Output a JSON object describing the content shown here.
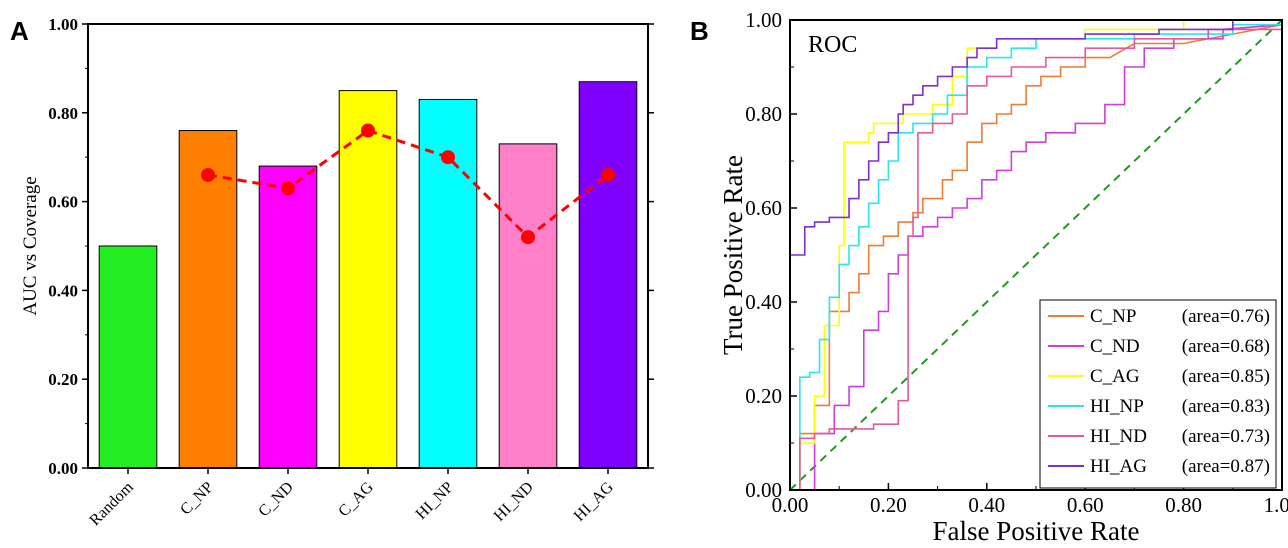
{
  "chart_data": [
    {
      "panel": "A",
      "type": "bar",
      "ylabel": "AUC vs Coverage",
      "ylim": [
        0,
        1
      ],
      "yticks": [
        "0.00",
        "0.20",
        "0.40",
        "0.60",
        "0.80",
        "1.00"
      ],
      "categories": [
        "Random",
        "C_NP",
        "C_ND",
        "C_AG",
        "HI_NP",
        "HI_ND",
        "HI_AG"
      ],
      "values": [
        0.5,
        0.76,
        0.68,
        0.85,
        0.83,
        0.73,
        0.87
      ],
      "bar_colors": [
        "#22ee22",
        "#ff8000",
        "#ff00ff",
        "#ffff00",
        "#00ffff",
        "#ff80c8",
        "#8000ff"
      ],
      "overlay_line": {
        "style": "dashed",
        "color": "#ff0000",
        "categories": [
          "C_NP",
          "C_ND",
          "C_AG",
          "HI_NP",
          "HI_ND",
          "HI_AG"
        ],
        "values": [
          0.66,
          0.63,
          0.76,
          0.7,
          0.52,
          0.66
        ]
      }
    },
    {
      "panel": "B",
      "type": "line",
      "inset_title": "ROC",
      "xlabel": "False Positive Rate",
      "ylabel": "True Positive Rate",
      "xlim": [
        0,
        1
      ],
      "ylim": [
        0,
        1
      ],
      "xticks": [
        "0.00",
        "0.20",
        "0.40",
        "0.60",
        "0.80",
        "1.00"
      ],
      "yticks": [
        "0.00",
        "0.20",
        "0.40",
        "0.60",
        "0.80",
        "1.00"
      ],
      "legend_position": "bottom-right",
      "diagonal": {
        "style": "dashed",
        "color": "#1f9a1f"
      },
      "series": [
        {
          "name": "C_NP",
          "area_label": "(area=0.76)",
          "color": "#ee7d31",
          "points": [
            [
              0,
              0
            ],
            [
              0.02,
              0
            ],
            [
              0.02,
              0.12
            ],
            [
              0.05,
              0.12
            ],
            [
              0.05,
              0.18
            ],
            [
              0.08,
              0.18
            ],
            [
              0.08,
              0.38
            ],
            [
              0.1,
              0.38
            ],
            [
              0.12,
              0.38
            ],
            [
              0.12,
              0.42
            ],
            [
              0.14,
              0.42
            ],
            [
              0.14,
              0.46
            ],
            [
              0.16,
              0.46
            ],
            [
              0.16,
              0.52
            ],
            [
              0.19,
              0.52
            ],
            [
              0.19,
              0.54
            ],
            [
              0.22,
              0.54
            ],
            [
              0.22,
              0.57
            ],
            [
              0.25,
              0.57
            ],
            [
              0.25,
              0.59
            ],
            [
              0.27,
              0.59
            ],
            [
              0.27,
              0.62
            ],
            [
              0.31,
              0.62
            ],
            [
              0.31,
              0.66
            ],
            [
              0.33,
              0.66
            ],
            [
              0.33,
              0.68
            ],
            [
              0.36,
              0.68
            ],
            [
              0.36,
              0.74
            ],
            [
              0.39,
              0.74
            ],
            [
              0.39,
              0.78
            ],
            [
              0.42,
              0.78
            ],
            [
              0.42,
              0.8
            ],
            [
              0.45,
              0.8
            ],
            [
              0.45,
              0.82
            ],
            [
              0.48,
              0.82
            ],
            [
              0.48,
              0.86
            ],
            [
              0.51,
              0.86
            ],
            [
              0.51,
              0.88
            ],
            [
              0.55,
              0.88
            ],
            [
              0.55,
              0.9
            ],
            [
              0.6,
              0.9
            ],
            [
              0.6,
              0.92
            ],
            [
              0.65,
              0.92
            ],
            [
              0.7,
              0.95
            ],
            [
              0.8,
              0.95
            ],
            [
              0.9,
              0.97
            ],
            [
              1,
              0.99
            ]
          ]
        },
        {
          "name": "C_ND",
          "area_label": "(area=0.68)",
          "color": "#d23be0",
          "points": [
            [
              0,
              0
            ],
            [
              0.05,
              0
            ],
            [
              0.05,
              0.12
            ],
            [
              0.09,
              0.12
            ],
            [
              0.09,
              0.18
            ],
            [
              0.12,
              0.18
            ],
            [
              0.12,
              0.22
            ],
            [
              0.15,
              0.22
            ],
            [
              0.15,
              0.34
            ],
            [
              0.18,
              0.34
            ],
            [
              0.18,
              0.38
            ],
            [
              0.2,
              0.38
            ],
            [
              0.2,
              0.46
            ],
            [
              0.22,
              0.46
            ],
            [
              0.22,
              0.5
            ],
            [
              0.24,
              0.5
            ],
            [
              0.24,
              0.54
            ],
            [
              0.27,
              0.54
            ],
            [
              0.27,
              0.56
            ],
            [
              0.3,
              0.56
            ],
            [
              0.3,
              0.58
            ],
            [
              0.33,
              0.58
            ],
            [
              0.33,
              0.6
            ],
            [
              0.36,
              0.6
            ],
            [
              0.36,
              0.62
            ],
            [
              0.39,
              0.62
            ],
            [
              0.39,
              0.66
            ],
            [
              0.42,
              0.66
            ],
            [
              0.42,
              0.68
            ],
            [
              0.45,
              0.68
            ],
            [
              0.45,
              0.72
            ],
            [
              0.48,
              0.72
            ],
            [
              0.48,
              0.74
            ],
            [
              0.52,
              0.74
            ],
            [
              0.52,
              0.76
            ],
            [
              0.58,
              0.76
            ],
            [
              0.58,
              0.78
            ],
            [
              0.64,
              0.78
            ],
            [
              0.64,
              0.82
            ],
            [
              0.68,
              0.82
            ],
            [
              0.68,
              0.9
            ],
            [
              0.72,
              0.9
            ],
            [
              0.72,
              0.94
            ],
            [
              0.78,
              0.94
            ],
            [
              0.78,
              0.96
            ],
            [
              0.88,
              0.96
            ],
            [
              0.88,
              0.98
            ],
            [
              1,
              0.99
            ]
          ]
        },
        {
          "name": "C_AG",
          "area_label": "(area=0.85)",
          "color": "#ffff00",
          "points": [
            [
              0,
              0
            ],
            [
              0.02,
              0
            ],
            [
              0.02,
              0.1
            ],
            [
              0.05,
              0.1
            ],
            [
              0.05,
              0.2
            ],
            [
              0.07,
              0.2
            ],
            [
              0.07,
              0.35
            ],
            [
              0.1,
              0.35
            ],
            [
              0.1,
              0.52
            ],
            [
              0.11,
              0.52
            ],
            [
              0.11,
              0.74
            ],
            [
              0.16,
              0.74
            ],
            [
              0.16,
              0.76
            ],
            [
              0.17,
              0.76
            ],
            [
              0.17,
              0.78
            ],
            [
              0.23,
              0.78
            ],
            [
              0.23,
              0.8
            ],
            [
              0.29,
              0.8
            ],
            [
              0.29,
              0.82
            ],
            [
              0.33,
              0.82
            ],
            [
              0.33,
              0.88
            ],
            [
              0.36,
              0.88
            ],
            [
              0.36,
              0.94
            ],
            [
              0.42,
              0.94
            ],
            [
              0.42,
              0.96
            ],
            [
              0.6,
              0.96
            ],
            [
              0.6,
              0.98
            ],
            [
              0.8,
              0.98
            ],
            [
              0.8,
              1
            ],
            [
              1,
              1
            ]
          ]
        },
        {
          "name": "HI_NP",
          "area_label": "(area=0.83)",
          "color": "#29e6ec",
          "points": [
            [
              0,
              0
            ],
            [
              0.02,
              0
            ],
            [
              0.02,
              0.24
            ],
            [
              0.04,
              0.24
            ],
            [
              0.04,
              0.25
            ],
            [
              0.06,
              0.25
            ],
            [
              0.06,
              0.32
            ],
            [
              0.08,
              0.32
            ],
            [
              0.08,
              0.41
            ],
            [
              0.1,
              0.41
            ],
            [
              0.1,
              0.48
            ],
            [
              0.12,
              0.48
            ],
            [
              0.12,
              0.52
            ],
            [
              0.14,
              0.52
            ],
            [
              0.14,
              0.56
            ],
            [
              0.16,
              0.56
            ],
            [
              0.16,
              0.61
            ],
            [
              0.18,
              0.61
            ],
            [
              0.18,
              0.66
            ],
            [
              0.2,
              0.66
            ],
            [
              0.2,
              0.7
            ],
            [
              0.22,
              0.7
            ],
            [
              0.22,
              0.76
            ],
            [
              0.25,
              0.76
            ],
            [
              0.25,
              0.78
            ],
            [
              0.29,
              0.78
            ],
            [
              0.29,
              0.8
            ],
            [
              0.32,
              0.8
            ],
            [
              0.32,
              0.84
            ],
            [
              0.36,
              0.84
            ],
            [
              0.36,
              0.9
            ],
            [
              0.4,
              0.9
            ],
            [
              0.4,
              0.92
            ],
            [
              0.45,
              0.92
            ],
            [
              0.45,
              0.94
            ],
            [
              0.5,
              0.94
            ],
            [
              0.5,
              0.96
            ],
            [
              0.7,
              0.96
            ],
            [
              0.7,
              0.97
            ],
            [
              0.9,
              0.97
            ],
            [
              0.9,
              0.99
            ],
            [
              1,
              0.99
            ]
          ]
        },
        {
          "name": "HI_ND",
          "area_label": "(area=0.73)",
          "color": "#e6599c",
          "points": [
            [
              0,
              0
            ],
            [
              0.02,
              0
            ],
            [
              0.02,
              0.11
            ],
            [
              0.05,
              0.11
            ],
            [
              0.05,
              0.12
            ],
            [
              0.08,
              0.12
            ],
            [
              0.08,
              0.13
            ],
            [
              0.17,
              0.13
            ],
            [
              0.17,
              0.14
            ],
            [
              0.22,
              0.14
            ],
            [
              0.22,
              0.19
            ],
            [
              0.24,
              0.19
            ],
            [
              0.24,
              0.54
            ],
            [
              0.25,
              0.54
            ],
            [
              0.25,
              0.58
            ],
            [
              0.26,
              0.58
            ],
            [
              0.26,
              0.76
            ],
            [
              0.29,
              0.76
            ],
            [
              0.29,
              0.78
            ],
            [
              0.33,
              0.78
            ],
            [
              0.33,
              0.8
            ],
            [
              0.36,
              0.8
            ],
            [
              0.36,
              0.86
            ],
            [
              0.4,
              0.86
            ],
            [
              0.4,
              0.88
            ],
            [
              0.45,
              0.88
            ],
            [
              0.45,
              0.9
            ],
            [
              0.52,
              0.9
            ],
            [
              0.52,
              0.92
            ],
            [
              0.6,
              0.92
            ],
            [
              0.6,
              0.94
            ],
            [
              0.7,
              0.94
            ],
            [
              0.7,
              0.96
            ],
            [
              0.85,
              0.96
            ],
            [
              0.85,
              0.98
            ],
            [
              1,
              0.98
            ]
          ]
        },
        {
          "name": "HI_AG",
          "area_label": "(area=0.87)",
          "color": "#7b2fd4",
          "points": [
            [
              0,
              0
            ],
            [
              0,
              0.5
            ],
            [
              0.03,
              0.5
            ],
            [
              0.03,
              0.56
            ],
            [
              0.05,
              0.56
            ],
            [
              0.05,
              0.57
            ],
            [
              0.08,
              0.57
            ],
            [
              0.08,
              0.58
            ],
            [
              0.12,
              0.58
            ],
            [
              0.12,
              0.62
            ],
            [
              0.14,
              0.62
            ],
            [
              0.14,
              0.66
            ],
            [
              0.16,
              0.66
            ],
            [
              0.16,
              0.7
            ],
            [
              0.18,
              0.7
            ],
            [
              0.18,
              0.74
            ],
            [
              0.2,
              0.74
            ],
            [
              0.2,
              0.76
            ],
            [
              0.22,
              0.76
            ],
            [
              0.22,
              0.8
            ],
            [
              0.23,
              0.8
            ],
            [
              0.23,
              0.82
            ],
            [
              0.25,
              0.82
            ],
            [
              0.25,
              0.84
            ],
            [
              0.27,
              0.84
            ],
            [
              0.27,
              0.86
            ],
            [
              0.3,
              0.86
            ],
            [
              0.3,
              0.88
            ],
            [
              0.33,
              0.88
            ],
            [
              0.33,
              0.9
            ],
            [
              0.36,
              0.9
            ],
            [
              0.36,
              0.92
            ],
            [
              0.38,
              0.92
            ],
            [
              0.38,
              0.94
            ],
            [
              0.42,
              0.94
            ],
            [
              0.42,
              0.96
            ],
            [
              0.6,
              0.96
            ],
            [
              0.6,
              0.97
            ],
            [
              0.75,
              0.97
            ],
            [
              0.75,
              0.98
            ],
            [
              0.9,
              0.98
            ],
            [
              0.9,
              1
            ],
            [
              1,
              1
            ]
          ]
        }
      ]
    }
  ]
}
